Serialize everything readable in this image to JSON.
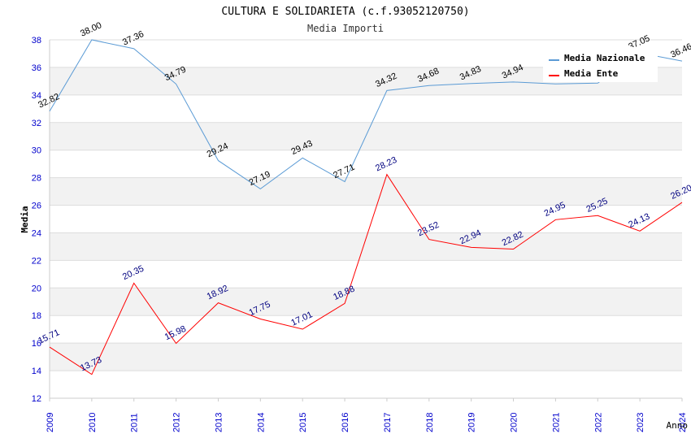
{
  "chart_data": {
    "type": "line",
    "title": "CULTURA E SOLIDARIETA (c.f.93052120750)",
    "subtitle": "Media Importi",
    "xlabel": "Anno",
    "ylabel": "Media",
    "categories": [
      "2009",
      "2010",
      "2011",
      "2012",
      "2013",
      "2014",
      "2015",
      "2016",
      "2017",
      "2018",
      "2019",
      "2020",
      "2021",
      "2022",
      "2023",
      "2024"
    ],
    "ylim": [
      12,
      38
    ],
    "yticks": [
      12,
      14,
      16,
      18,
      20,
      22,
      24,
      26,
      28,
      30,
      32,
      34,
      36,
      38
    ],
    "legend_position": "top-right",
    "series": [
      {
        "name": "Media Nazionale",
        "color": "#5b9bd5",
        "values": [
          32.82,
          38.0,
          37.36,
          34.79,
          29.24,
          27.19,
          29.43,
          27.71,
          34.32,
          34.68,
          34.83,
          34.94,
          34.8,
          34.86,
          37.05,
          36.46
        ],
        "labels": [
          "32.82",
          "38.00",
          "37.36",
          "34.79",
          "29.24",
          "27.19",
          "29.43",
          "27.71",
          "34.32",
          "34.68",
          "34.83",
          "34.94",
          "",
          "",
          "37.05",
          "36.46"
        ]
      },
      {
        "name": "Media Ente",
        "color": "#ff0000",
        "values": [
          15.71,
          13.73,
          20.35,
          15.98,
          18.92,
          17.75,
          17.01,
          18.88,
          28.23,
          23.52,
          22.94,
          22.82,
          24.95,
          25.25,
          24.13,
          26.2
        ],
        "labels": [
          "15.71",
          "13.73",
          "20.35",
          "15.98",
          "18.92",
          "17.75",
          "17.01",
          "18.88",
          "28.23",
          "23.52",
          "22.94",
          "22.82",
          "24.95",
          "25.25",
          "24.13",
          "26.20"
        ]
      }
    ]
  }
}
